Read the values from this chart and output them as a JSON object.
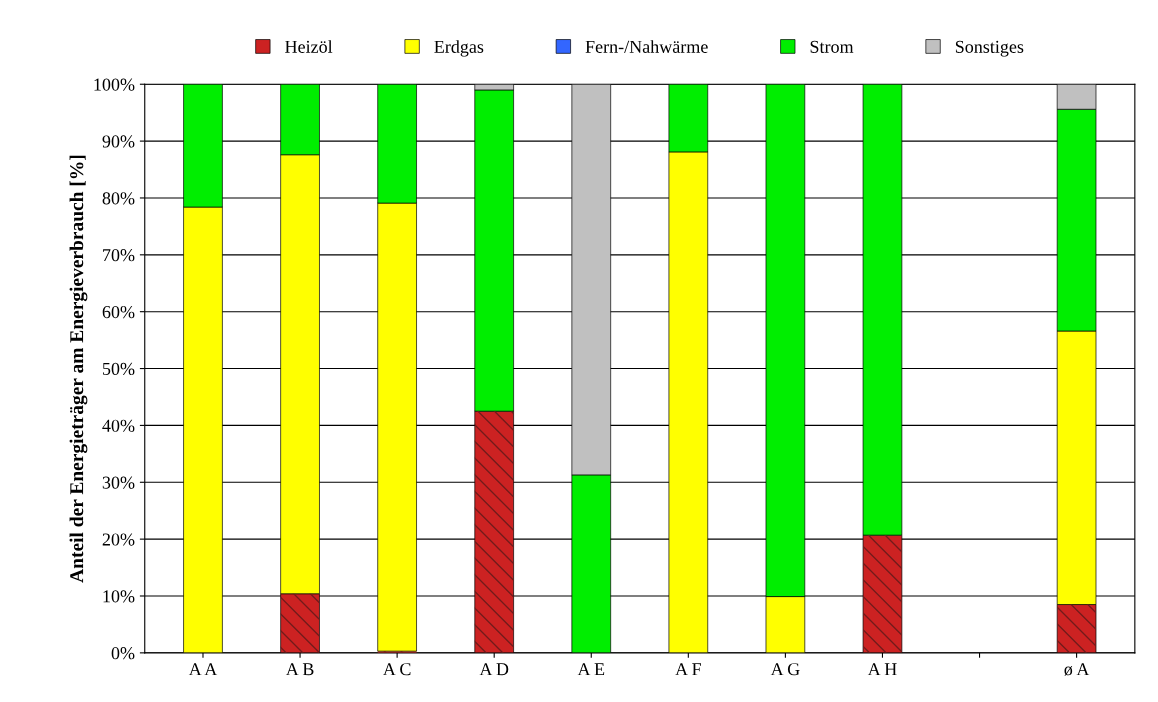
{
  "chart_data": {
    "type": "bar",
    "stacked": true,
    "ylabel": "Anteil der Energieträger am Energieverbrauch [%]",
    "categories": [
      "A A",
      "A B",
      "A C",
      "A D",
      "A E",
      "A F",
      "A G",
      "A H",
      null,
      "ø A"
    ],
    "series": [
      {
        "name": "Heizöl",
        "color": "#cc2222",
        "values": [
          0,
          10.4,
          0.3,
          42.5,
          0,
          0,
          0,
          20.7,
          null,
          8.5
        ]
      },
      {
        "name": "Erdgas",
        "color": "#ffff00",
        "values": [
          78.4,
          77.2,
          78.8,
          0,
          0,
          88.1,
          9.9,
          0,
          null,
          48.1
        ]
      },
      {
        "name": "Fern-/Nahwärme",
        "color": "#3366ff",
        "values": [
          0,
          0,
          0,
          0,
          0,
          0,
          0,
          0,
          null,
          0
        ]
      },
      {
        "name": "Strom",
        "color": "#00ee00",
        "values": [
          21.6,
          12.4,
          20.9,
          56.5,
          31.3,
          11.9,
          90.1,
          79.3,
          null,
          39.0
        ]
      },
      {
        "name": "Sonstiges",
        "color": "#c0c0c0",
        "values": [
          0,
          0,
          0,
          1.0,
          68.7,
          0,
          0,
          0,
          null,
          4.4
        ]
      }
    ],
    "ylim": [
      0,
      100
    ],
    "yticks": [
      {
        "value": 0,
        "label": "0%"
      },
      {
        "value": 10,
        "label": "10%"
      },
      {
        "value": 20,
        "label": "20%"
      },
      {
        "value": 30,
        "label": "30%"
      },
      {
        "value": 40,
        "label": "40%"
      },
      {
        "value": 50,
        "label": "50%"
      },
      {
        "value": 60,
        "label": "60%"
      },
      {
        "value": 70,
        "label": "70%"
      },
      {
        "value": 80,
        "label": "80%"
      },
      {
        "value": 90,
        "label": "90%"
      },
      {
        "value": 100,
        "label": "100%"
      }
    ],
    "grid": "y",
    "legend": "top"
  }
}
